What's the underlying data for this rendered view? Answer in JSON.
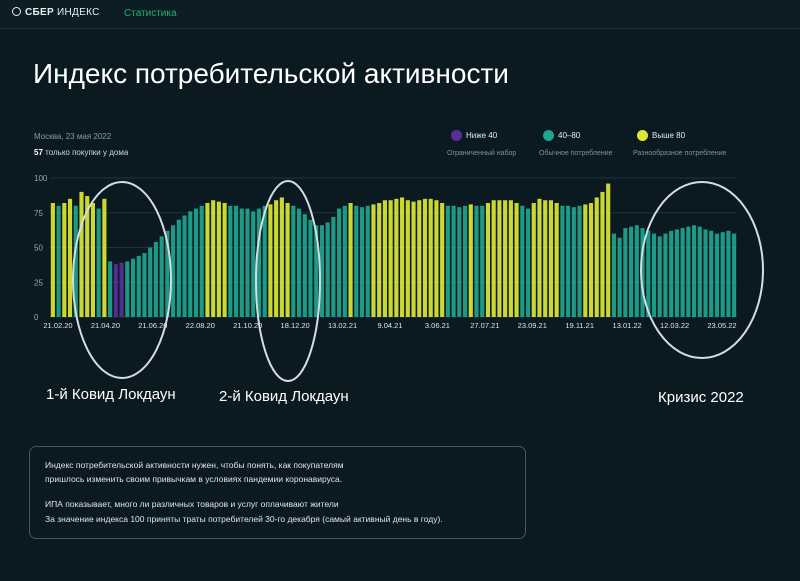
{
  "header": {
    "logo_bold": "СБЕР",
    "logo_light": "ИНДЕКС",
    "nav_item": "Статистика"
  },
  "page": {
    "title": "Индекс потребительской активности",
    "date": "Москва, 23 мая 2022",
    "current_value": "57",
    "current_note": "только покупки у дома"
  },
  "legend": [
    {
      "label": "Ниже 40",
      "sub": "Ограниченный набор",
      "color": "#5b2f9a"
    },
    {
      "label": "40–80",
      "sub": "Обычное потребление",
      "color": "#1fa58f"
    },
    {
      "label": "Выше 80",
      "sub": "Разнообразное потребление",
      "color": "#dde833"
    }
  ],
  "annotations": {
    "lockdown1": "1-й Ковид Локдаун",
    "lockdown2": "2-й Ковид Локдаун",
    "crisis": "Кризис 2022"
  },
  "info": {
    "line1": "Индекс потребительской активности нужен, чтобы понять, как покупателям",
    "line2": "пришлось изменить своим привычкам в условиях пандемии коронавируса.",
    "line3": "ИПА показывает, много ли различных товаров и услуг оплачивают жители",
    "line4": "За значение индекса 100 приняты траты потребителей 30-го декабря  (самый активный день в году)."
  },
  "chart_data": {
    "type": "bar",
    "ylim": [
      0,
      100
    ],
    "yticks": [
      "0",
      "25",
      "50",
      "75",
      "100"
    ],
    "xticks": [
      "21.02.20",
      "21.04.20",
      "21.06.20",
      "22.08.20",
      "21.10.20",
      "18.12.20",
      "13.02.21",
      "9.04.21",
      "3.06.21",
      "27.07.21",
      "23.09.21",
      "19.11.21",
      "13.01.22",
      "12.03.22",
      "23.05.22"
    ],
    "colors": {
      "low": "#5b2f9a",
      "mid": "#1fa58f",
      "high": "#dde833"
    },
    "series": [
      {
        "values": [
          82,
          80,
          82,
          85,
          80,
          90,
          87,
          82,
          78,
          85,
          40,
          38,
          39,
          40,
          42,
          44,
          46,
          50,
          54,
          58,
          62,
          66,
          70,
          73,
          76,
          78,
          80,
          82,
          84,
          83,
          82,
          80,
          80,
          78,
          78,
          76,
          78,
          80,
          81,
          84,
          86,
          82,
          80,
          78,
          74,
          70,
          66,
          66,
          68,
          72,
          78,
          80,
          82,
          80,
          79,
          80,
          81,
          82,
          84,
          84,
          85,
          86,
          84,
          83,
          84,
          85,
          85,
          84,
          82,
          80,
          80,
          79,
          80,
          81,
          80,
          80,
          82,
          84,
          84,
          84,
          84,
          82,
          80,
          78,
          82,
          85,
          84,
          84,
          82,
          80,
          80,
          79,
          80,
          81,
          82,
          86,
          90,
          96,
          60,
          57,
          64,
          65,
          66,
          64,
          62,
          60,
          58,
          60,
          62,
          63,
          64,
          65,
          66,
          65,
          63,
          62,
          60,
          61,
          62,
          60
        ]
      }
    ]
  }
}
